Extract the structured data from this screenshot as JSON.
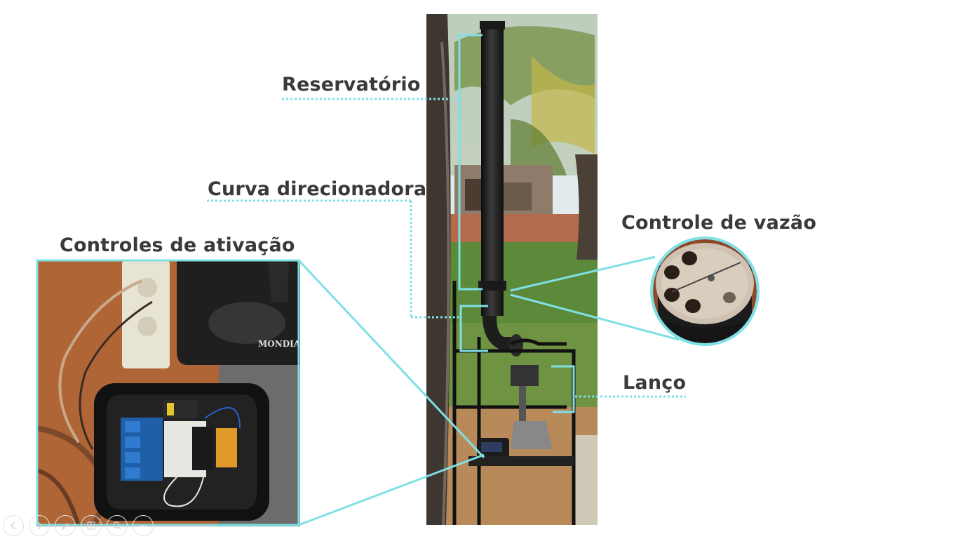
{
  "slide": {
    "labels": {
      "reservoir": "Reservatório",
      "curve": "Curva direcionadora",
      "flow_control": "Controle de vazão",
      "activation": "Controles de ativação",
      "boom": "Lanço"
    },
    "photo_text": "MONDIAL",
    "accent_color": "#7fe0e6"
  },
  "nav": {
    "buttons": [
      "previous-icon",
      "next-icon",
      "pen-icon",
      "slides-icon",
      "zoom-icon",
      "more-icon"
    ]
  }
}
